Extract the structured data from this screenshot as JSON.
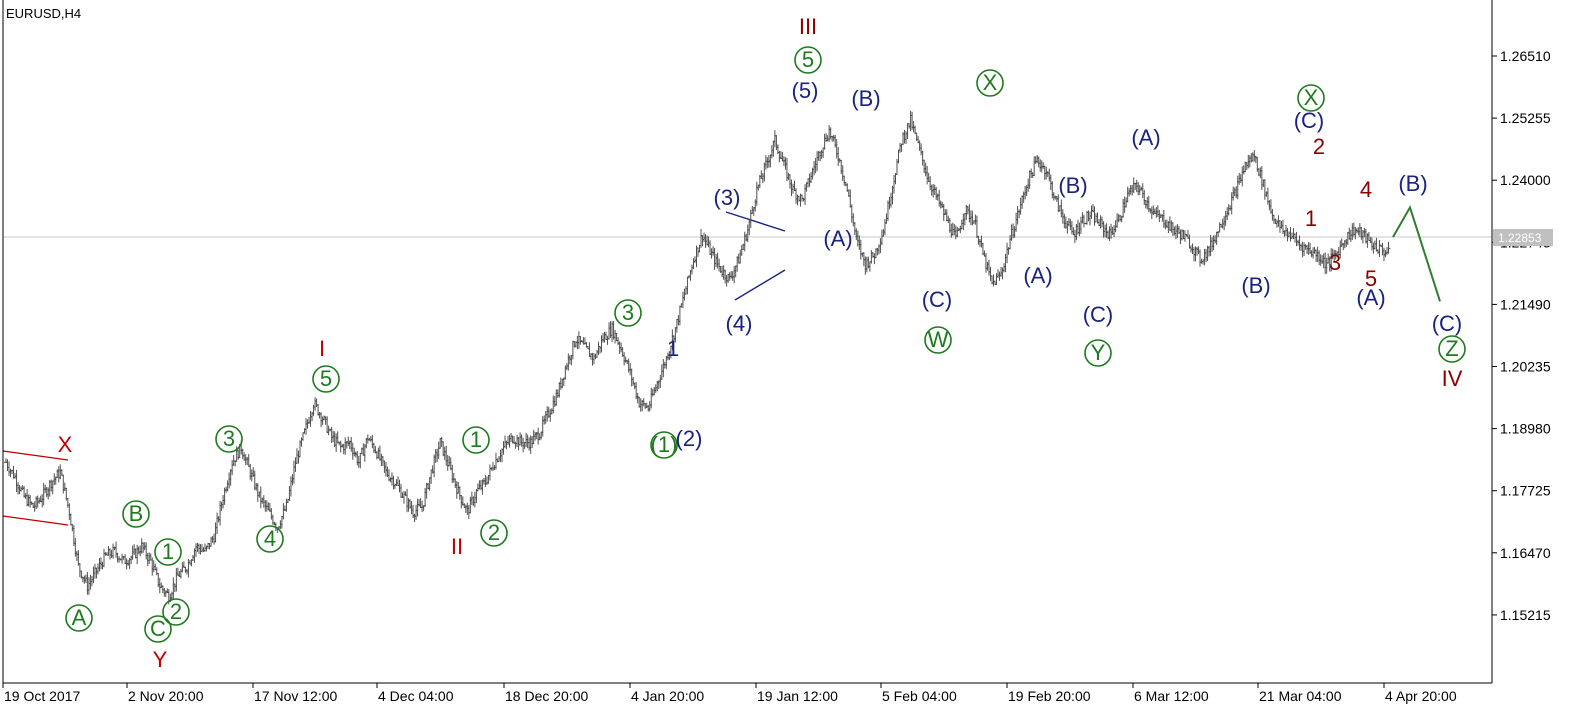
{
  "symbol_label": "EURUSD,H4",
  "current_price": "1.22853",
  "colors": {
    "candle": "#505050",
    "grid_line": "#c8c8c8",
    "price_tag_bg": "#c0c0c0",
    "dark_blue": "#1a237e",
    "green": "#1f7a1f",
    "dark_red": "#8b0000",
    "red": "#c00000",
    "channel_red": "#c00000",
    "projection_green": "#2e7d32"
  },
  "chart_data": {
    "type": "line",
    "title": "EURUSD,H4",
    "y_ticks": [
      "1.26510",
      "1.25255",
      "1.24000",
      "1.22745",
      "1.21490",
      "1.20235",
      "1.18980",
      "1.17725",
      "1.16470",
      "1.15215"
    ],
    "x_ticks": [
      "19 Oct 2017",
      "2 Nov 20:00",
      "17 Nov 12:00",
      "4 Dec 04:00",
      "18 Dec 20:00",
      "4 Jan 20:00",
      "19 Jan 12:00",
      "5 Feb 04:00",
      "19 Feb 20:00",
      "6 Mar 12:00",
      "21 Mar 04:00",
      "4 Apr 20:00"
    ],
    "ylim": [
      1.1395,
      1.2755
    ],
    "series": [
      {
        "values": [
          1.183,
          1.18,
          1.176,
          1.174,
          1.176,
          1.179,
          1.181,
          1.173,
          1.162,
          1.158,
          1.161,
          1.164,
          1.165,
          1.163,
          1.164,
          1.166,
          1.163,
          1.158,
          1.156,
          1.16,
          1.162,
          1.166,
          1.165,
          1.168,
          1.176,
          1.183,
          1.186,
          1.181,
          1.176,
          1.173,
          1.17,
          1.174,
          1.183,
          1.189,
          1.195,
          1.192,
          1.188,
          1.186,
          1.187,
          1.183,
          1.188,
          1.185,
          1.181,
          1.179,
          1.176,
          1.173,
          1.174,
          1.181,
          1.187,
          1.182,
          1.177,
          1.173,
          1.177,
          1.179,
          1.183,
          1.186,
          1.188,
          1.187,
          1.187,
          1.189,
          1.193,
          1.197,
          1.203,
          1.208,
          1.206,
          1.204,
          1.208,
          1.21,
          1.206,
          1.201,
          1.195,
          1.194,
          1.199,
          1.204,
          1.21,
          1.217,
          1.224,
          1.229,
          1.225,
          1.222,
          1.22,
          1.224,
          1.23,
          1.238,
          1.243,
          1.248,
          1.243,
          1.238,
          1.236,
          1.241,
          1.246,
          1.25,
          1.245,
          1.238,
          1.228,
          1.223,
          1.225,
          1.23,
          1.239,
          1.248,
          1.252,
          1.246,
          1.24,
          1.236,
          1.232,
          1.228,
          1.234,
          1.232,
          1.225,
          1.219,
          1.221,
          1.228,
          1.234,
          1.24,
          1.244,
          1.242,
          1.236,
          1.232,
          1.229,
          1.232,
          1.233,
          1.231,
          1.229,
          1.232,
          1.237,
          1.239,
          1.236,
          1.233,
          1.232,
          1.23,
          1.229,
          1.227,
          1.224,
          1.226,
          1.23,
          1.234,
          1.238,
          1.243,
          1.245,
          1.239,
          1.233,
          1.23,
          1.229,
          1.227,
          1.226,
          1.225,
          1.223,
          1.225,
          1.228,
          1.23,
          1.229,
          1.227,
          1.226,
          1.225
        ]
      }
    ],
    "projection": [
      1.2285,
      1.2345,
      1.2155
    ],
    "wave_labels": [
      "III",
      "5",
      "(5)",
      "(B)",
      "X",
      "(3)",
      "(A)",
      "(4)",
      "(C)",
      "W",
      "(B)",
      "(A)",
      "(C)",
      "Y",
      "(A)",
      "(B)",
      "X",
      "(C)",
      "2",
      "4",
      "(B)",
      "1",
      "3",
      "5",
      "(A)",
      "(C)",
      "Z",
      "IV",
      "I",
      "5",
      "3",
      "1",
      "(1)",
      "4",
      "(2)",
      "X",
      "B",
      "A",
      "1",
      "2",
      "C",
      "Y",
      "4",
      "II",
      "2"
    ]
  }
}
